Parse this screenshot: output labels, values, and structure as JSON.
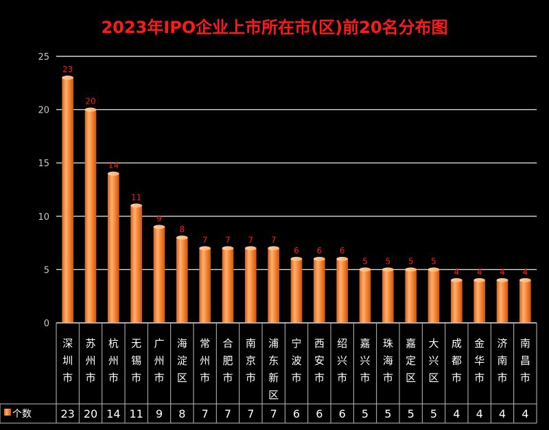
{
  "chart_data": {
    "type": "bar",
    "title": "2023年IPO企业上市所在市(区)前20名分布图",
    "categories": [
      "深圳市",
      "苏州市",
      "杭州市",
      "无锡市",
      "广州市",
      "海淀区",
      "常州市",
      "合肥市",
      "南京市",
      "浦东新区",
      "宁波市",
      "西安市",
      "绍兴市",
      "嘉兴市",
      "珠海市",
      "嘉定区",
      "大兴区",
      "成都市",
      "金华市",
      "济南市",
      "南昌市"
    ],
    "series": [
      {
        "name": "个数",
        "values": [
          23,
          20,
          14,
          11,
          9,
          8,
          7,
          7,
          7,
          7,
          6,
          6,
          6,
          5,
          5,
          5,
          5,
          4,
          4,
          4,
          4
        ]
      }
    ],
    "ylim": [
      0,
      25
    ],
    "yticks": [
      0,
      5,
      10,
      15,
      20,
      25
    ],
    "grid": true,
    "legend": "data-table-left",
    "colors": {
      "bar_light": "#ffc08a",
      "bar_mid": "#f98a3a",
      "bar_dark": "#d9621a",
      "label": "#ff1a1a",
      "title": "#ff1a1a",
      "text": "#ffffff",
      "axis_text": "#c8c8c8"
    }
  }
}
